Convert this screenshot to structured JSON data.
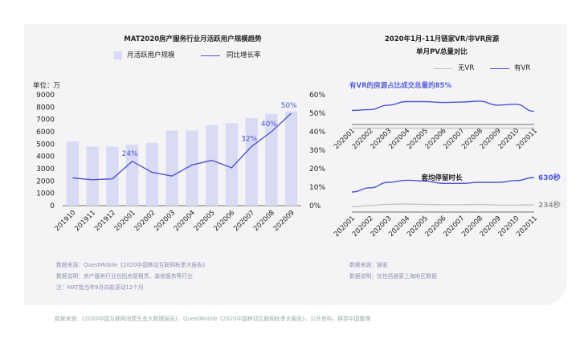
{
  "left_chart": {
    "title": "MAT2020房产服务行业月活跃用户规模趋势",
    "unit_label": "单位：万",
    "legend": {
      "bar_label": "月活跃用户规模",
      "line_label": "同比增长率"
    },
    "notes": [
      "数据来源：QuestMobile《2020中国移动互联网秋季大报告》",
      "数据说明：房产服务行业包括房屋租赁、装修服务等行业",
      "注：MAT指当年9月向前滚动12个月"
    ]
  },
  "right_chart": {
    "title_line1": "2020年1月-11月链家VR/非VR房源",
    "title_line2": "单月PV总量对比",
    "legend": {
      "no_vr": "无VR",
      "vr": "有VR"
    },
    "highlight": "有VR的房源占比成交总量的85%",
    "sub_title": "套均停留时长",
    "notes": [
      "数据来源：链家",
      "数据说明：仅包括链家上海地区数据"
    ]
  },
  "footer_source": "数据来源：《2020中国互联网消费生态大数据报告》，QuestMobile《2020中国移动互联网秋季大报告》，公开资料，群邑中国整理",
  "colors": {
    "bar": "#d9daf3",
    "line": "#4d54d1",
    "gray_line": "#c4c4c4",
    "card_bg": "#f4f4f6"
  },
  "chart_data": [
    {
      "type": "bar",
      "title": "MAT2020房产服务行业月活跃用户规模趋势",
      "categories": [
        "201910",
        "201911",
        "201912",
        "202001",
        "202002",
        "202003",
        "202004",
        "202005",
        "202006",
        "202007",
        "202008",
        "202009"
      ],
      "series": [
        {
          "name": "月活跃用户规模",
          "type": "bar",
          "axis": "left",
          "values": [
            5200,
            4800,
            4800,
            4950,
            5100,
            6100,
            6100,
            6550,
            6700,
            7100,
            7450,
            7650
          ]
        },
        {
          "name": "同比增长率",
          "type": "line",
          "axis": "right",
          "values": [
            15,
            14,
            14.5,
            24,
            18,
            16,
            22,
            24.5,
            20.5,
            32,
            40,
            50
          ],
          "labels": [
            "",
            "",
            "",
            "24%",
            "",
            "",
            "",
            "",
            "",
            "32%",
            "40%",
            "50%"
          ]
        }
      ],
      "ylim_left": [
        0,
        9000
      ],
      "yticks_left": [
        "0",
        "1000",
        "2000",
        "3000",
        "4000",
        "5000",
        "6000",
        "7000",
        "8000",
        "9000"
      ],
      "ylim_right": [
        0,
        60
      ],
      "yticks_right": [
        "0%",
        "10%",
        "20%",
        "30%",
        "40%",
        "50%",
        "60%"
      ],
      "ylabel": "单位：万",
      "legend": "top"
    },
    {
      "type": "line",
      "title": "2020年1月-11月链家VR/非VR房源单月PV总量对比",
      "categories": [
        "202001",
        "202002",
        "202003",
        "202004",
        "202005",
        "202006",
        "202007",
        "202008",
        "202009",
        "202010",
        "202011"
      ],
      "series": [
        {
          "name": "有VR",
          "values": [
            0.5,
            0.52,
            0.62,
            0.7,
            0.7,
            0.68,
            0.69,
            0.71,
            0.62,
            0.64,
            0.48
          ]
        },
        {
          "name": "无VR",
          "values": [
            0.1,
            0.1,
            0.1,
            0.1,
            0.1,
            0.1,
            0.1,
            0.1,
            0.1,
            0.1,
            0.1
          ]
        }
      ],
      "ylim": [
        0,
        1
      ],
      "legend": "top-right",
      "annotation": "有VR的房源占比成交总量的85%"
    },
    {
      "type": "line",
      "title": "套均停留时长",
      "categories": [
        "202001",
        "202002",
        "202003",
        "202004",
        "202005",
        "202006",
        "202007",
        "202008",
        "202009",
        "202010",
        "202011"
      ],
      "series": [
        {
          "name": "有VR",
          "values": [
            420,
            480,
            560,
            590,
            580,
            545,
            545,
            560,
            560,
            585,
            630
          ],
          "end_label": "630秒"
        },
        {
          "name": "无VR",
          "values": [
            205,
            225,
            240,
            245,
            240,
            235,
            235,
            240,
            230,
            230,
            234
          ],
          "end_label": "234秒"
        }
      ],
      "ylim": [
        0,
        700
      ]
    }
  ]
}
